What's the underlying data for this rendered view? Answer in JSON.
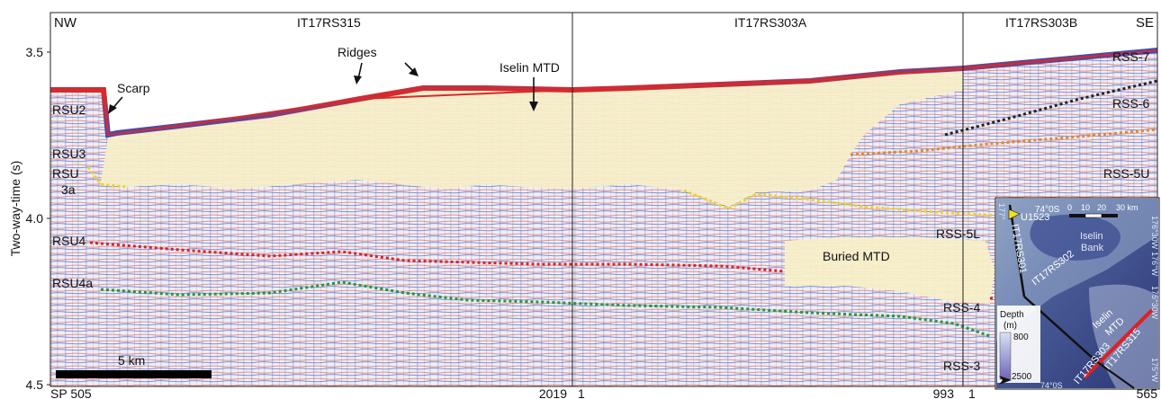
{
  "axis": {
    "ylabel": "Two-way-time (s)",
    "yticks": [
      "3.5",
      "4.0",
      "4.5"
    ]
  },
  "profiles": {
    "left": {
      "name": "IT17RS315",
      "sp_start": "SP 505",
      "sp_end": "2019"
    },
    "middle": {
      "name": "IT17RS303A",
      "sp_start": "1",
      "sp_end": "993"
    },
    "right": {
      "name": "IT17RS303B",
      "sp_start": "1",
      "sp_end": "565"
    }
  },
  "directions": {
    "start": "NW",
    "end": "SE"
  },
  "scale_bar": "5 km",
  "annotations": {
    "scarp": "Scarp",
    "ridges": "Ridges",
    "iselin_mtd": "Iselin MTD",
    "buried_mtd": "Buried MTD"
  },
  "units_left": [
    "RSU2",
    "RSU3",
    "RSU",
    "3a",
    "RSU4",
    "RSU4a"
  ],
  "units_right": [
    "RSS-7",
    "RSS-6",
    "RSS-5U",
    "RSS-5L",
    "RSS-4",
    "RSS-3"
  ],
  "horizon_colors": {
    "rss7_black": "#222222",
    "rss6_orange": "#e6862a",
    "rss5_yellow": "#f2d21e",
    "rss4_red": "#e02020",
    "rss3_green": "#1f9a3a",
    "mtd_fill": "#f7efc8"
  },
  "inset": {
    "lat_top": "74°0S",
    "lat_bottom": "74°0S",
    "lon_labels": [
      "176°30W",
      "176°W",
      "175°30W",
      "175°W"
    ],
    "lon_left": "177°",
    "scale": [
      "0",
      "10",
      "20",
      "30 km"
    ],
    "site": "U1523",
    "bank": [
      "Iselin",
      "Bank"
    ],
    "lines": [
      "IT17RS301",
      "IT17RS302",
      "IT17RS315",
      "IT17RS303"
    ],
    "mtd_label": [
      "Iselin",
      "MTD"
    ],
    "depth_title": [
      "Depth",
      "(m)"
    ],
    "depth_values": [
      "800",
      "2500"
    ]
  }
}
